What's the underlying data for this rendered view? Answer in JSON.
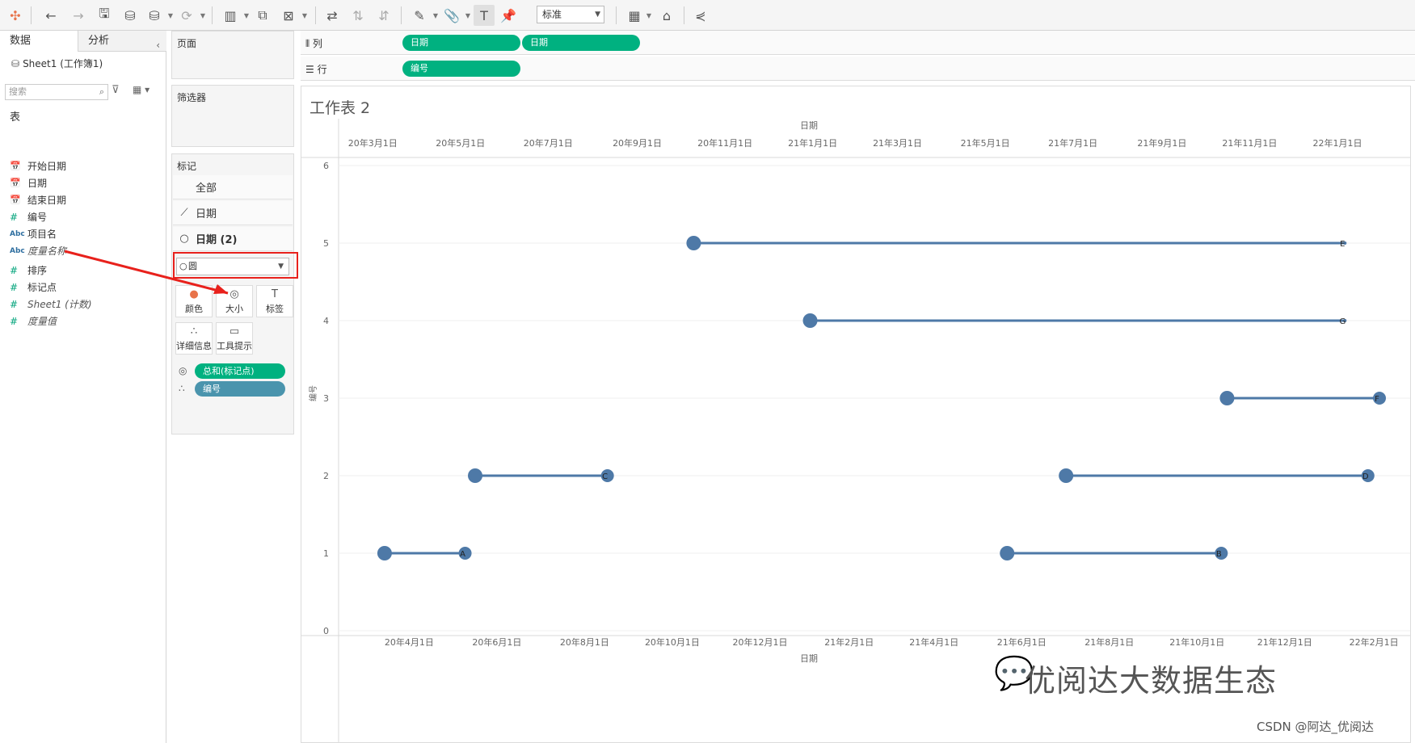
{
  "toolbar": {
    "standard_label": "标准",
    "icons": [
      "tableau-logo-icon",
      "undo-icon",
      "redo-icon",
      "save-icon",
      "new-datasource-icon",
      "datasource-icon",
      "refresh-icon",
      "new-sheet-icon",
      "duplicate-sheet-icon",
      "clear-sheet-icon",
      "swap-icon",
      "sort-asc-icon",
      "sort-desc-icon",
      "highlight-icon",
      "group-icon",
      "label-icon",
      "pin-icon",
      "show-me-icon",
      "presentation-icon",
      "share-icon"
    ]
  },
  "left": {
    "tab_data": "数据",
    "tab_analysis": "分析",
    "datasource": "Sheet1 (工作簿1)",
    "search_placeholder": "搜索",
    "table_label": "表",
    "fields": [
      {
        "icon": "📅",
        "label": "开始日期",
        "type": "date"
      },
      {
        "icon": "📅",
        "label": "日期",
        "type": "date"
      },
      {
        "icon": "📅",
        "label": "结束日期",
        "type": "date"
      },
      {
        "icon": "#",
        "label": "编号",
        "type": "measure"
      },
      {
        "icon": "Abc",
        "label": "项目名",
        "type": "string"
      },
      {
        "icon": "Abc",
        "label": "度量名称",
        "type": "string-italic"
      },
      {
        "icon": "#",
        "label": "排序",
        "type": "measure"
      },
      {
        "icon": "#",
        "label": "标记点",
        "type": "measure"
      },
      {
        "icon": "#",
        "label": "Sheet1 (计数)",
        "type": "measure-italic"
      },
      {
        "icon": "#",
        "label": "度量值",
        "type": "measure-italic"
      }
    ]
  },
  "pages": {
    "title": "页面"
  },
  "filters": {
    "title": "筛选器"
  },
  "marks": {
    "title": "标记",
    "rows": [
      {
        "icon": "",
        "label": "全部"
      },
      {
        "icon": "⟋",
        "label": "日期"
      },
      {
        "icon": "○",
        "label": "日期 (2)"
      }
    ],
    "mark_type": "圆",
    "buttons": [
      {
        "icon": "●",
        "label": "颜色"
      },
      {
        "icon": "◎",
        "label": "大小"
      },
      {
        "icon": "T",
        "label": "标签"
      },
      {
        "icon": "∴",
        "label": "详细信息"
      },
      {
        "icon": "▭",
        "label": "工具提示"
      }
    ],
    "pills": [
      {
        "icon": "◎",
        "label": "总和(标记点)",
        "color": "#00b180"
      },
      {
        "icon": "∴",
        "label": "编号",
        "color": "#4a94ad"
      }
    ]
  },
  "shelves": {
    "columns_label": "列",
    "rows_label": "行",
    "column_pills": [
      "日期",
      "日期"
    ],
    "row_pills": [
      "编号"
    ]
  },
  "sheet": {
    "title": "工作表 2"
  },
  "chart_data": {
    "type": "scatter",
    "top_axis_title": "日期",
    "top_ticks": [
      "20年3月1日",
      "20年5月1日",
      "20年7月1日",
      "20年9月1日",
      "20年11月1日",
      "21年1月1日",
      "21年3月1日",
      "21年5月1日",
      "21年7月1日",
      "21年9月1日",
      "21年11月1日",
      "22年1月1日"
    ],
    "bottom_axis_title": "日期",
    "bottom_ticks": [
      "20年4月1日",
      "20年6月1日",
      "20年8月1日",
      "20年10月1日",
      "20年12月1日",
      "21年2月1日",
      "21年4月1日",
      "21年6月1日",
      "21年8月1日",
      "21年10月1日",
      "21年12月1日",
      "22年2月1日"
    ],
    "y_label": "编号",
    "y_ticks": [
      0,
      1,
      2,
      3,
      4,
      5,
      6
    ],
    "ylim": [
      0,
      6
    ],
    "xlim": [
      "2020-02-22",
      "2022-02-06"
    ],
    "segments": [
      {
        "label": "A",
        "y": 1,
        "start": "2020-03-25",
        "end": "2020-05-20"
      },
      {
        "label": "B",
        "y": 1,
        "start": "2021-06-01",
        "end": "2021-10-28"
      },
      {
        "label": "C",
        "y": 2,
        "start": "2020-05-27",
        "end": "2020-08-27"
      },
      {
        "label": "D",
        "y": 2,
        "start": "2021-07-12",
        "end": "2022-02-07"
      },
      {
        "label": "E",
        "y": 5,
        "start": "2020-10-26",
        "end": "2022-01-22"
      },
      {
        "label": "F",
        "y": 3,
        "start": "2021-11-01",
        "end": "2022-02-15"
      },
      {
        "label": "G",
        "y": 4,
        "start": "2021-01-15",
        "end": "2022-01-22"
      }
    ],
    "start_point_color": "#4e79a7",
    "line_color": "#4e79a7"
  },
  "watermark": "优阅达大数据生态",
  "csdn": "CSDN @阿达_优阅达"
}
